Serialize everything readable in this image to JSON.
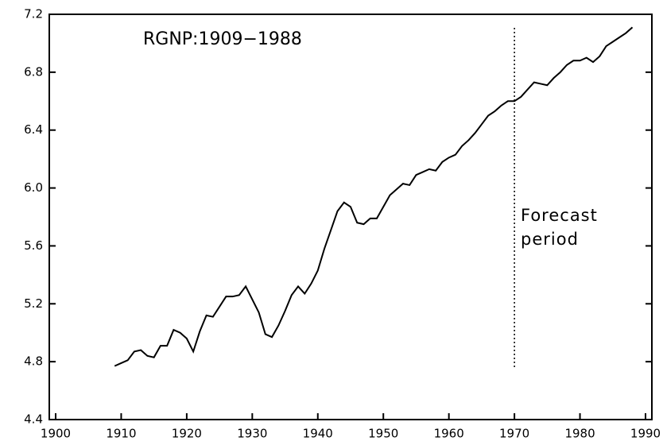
{
  "chart_data": {
    "type": "line",
    "title": "RGNP:1909−1988",
    "annotations": [
      "Forecast",
      "period"
    ],
    "forecast_start": 1970,
    "x": [
      1909,
      1910,
      1911,
      1912,
      1913,
      1914,
      1915,
      1916,
      1917,
      1918,
      1919,
      1920,
      1921,
      1922,
      1923,
      1924,
      1925,
      1926,
      1927,
      1928,
      1929,
      1930,
      1931,
      1932,
      1933,
      1934,
      1935,
      1936,
      1937,
      1938,
      1939,
      1940,
      1941,
      1942,
      1943,
      1944,
      1945,
      1946,
      1947,
      1948,
      1949,
      1950,
      1951,
      1952,
      1953,
      1954,
      1955,
      1956,
      1957,
      1958,
      1959,
      1960,
      1961,
      1962,
      1963,
      1964,
      1965,
      1966,
      1967,
      1968,
      1969,
      1970,
      1971,
      1972,
      1973,
      1974,
      1975,
      1976,
      1977,
      1978,
      1979,
      1980,
      1981,
      1982,
      1983,
      1984,
      1985,
      1986,
      1987,
      1988
    ],
    "series": [
      {
        "color": "#000000",
        "values": [
          4.77,
          4.79,
          4.81,
          4.87,
          4.88,
          4.84,
          4.83,
          4.91,
          4.91,
          5.02,
          5.0,
          4.96,
          4.87,
          5.01,
          5.12,
          5.11,
          5.18,
          5.25,
          5.25,
          5.26,
          5.32,
          5.23,
          5.14,
          4.99,
          4.97,
          5.05,
          5.15,
          5.26,
          5.32,
          5.27,
          5.34,
          5.43,
          5.58,
          5.71,
          5.84,
          5.9,
          5.87,
          5.76,
          5.75,
          5.79,
          5.79,
          5.87,
          5.95,
          5.99,
          6.03,
          6.02,
          6.09,
          6.11,
          6.13,
          6.12,
          6.18,
          6.21,
          6.23,
          6.29,
          6.33,
          6.38,
          6.44,
          6.5,
          6.53,
          6.57,
          6.6,
          6.6,
          6.63,
          6.68,
          6.73,
          6.72,
          6.71,
          6.76,
          6.8,
          6.85,
          6.88,
          6.88,
          6.9,
          6.87,
          6.91,
          6.98,
          7.01,
          7.04,
          7.07,
          7.11
        ]
      }
    ],
    "xlim": [
      1900,
      1990
    ],
    "xticks": [
      1900,
      1910,
      1920,
      1930,
      1940,
      1950,
      1960,
      1970,
      1980,
      1990
    ],
    "ylim": [
      4.4,
      7.2
    ],
    "yticks": [
      4.4,
      4.8,
      5.2,
      5.6,
      {
        "value": 6,
        "label": "6.0"
      },
      6.4,
      6.8,
      7.2
    ]
  }
}
